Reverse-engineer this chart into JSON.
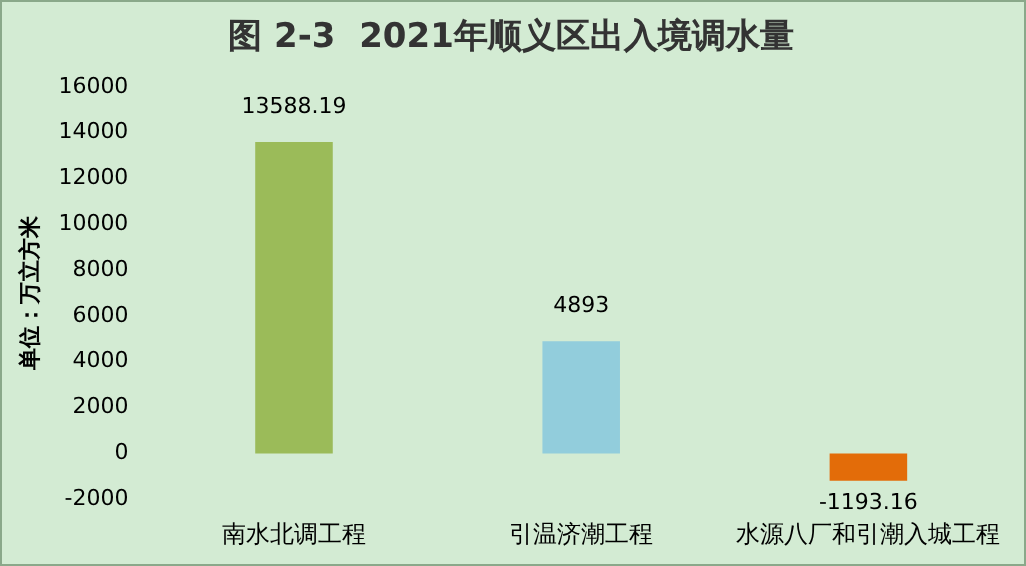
{
  "chart_data": {
    "type": "bar",
    "title": "图 2-3  2021年顺义区出入境调水量",
    "ylabel": "单位：万立方米",
    "categories": [
      "南水北调工程",
      "引温济潮工程",
      "水源八厂和引潮入城工程"
    ],
    "values": [
      13588.19,
      4893,
      -1193.16
    ],
    "colors": [
      "#9bbb59",
      "#92cddc",
      "#e36c09"
    ],
    "ylim": [
      -2000,
      16000
    ],
    "yticks": [
      -2000,
      0,
      2000,
      4000,
      6000,
      8000,
      10000,
      12000,
      14000,
      16000
    ],
    "grid": false,
    "legend": false,
    "data_labels": true
  }
}
